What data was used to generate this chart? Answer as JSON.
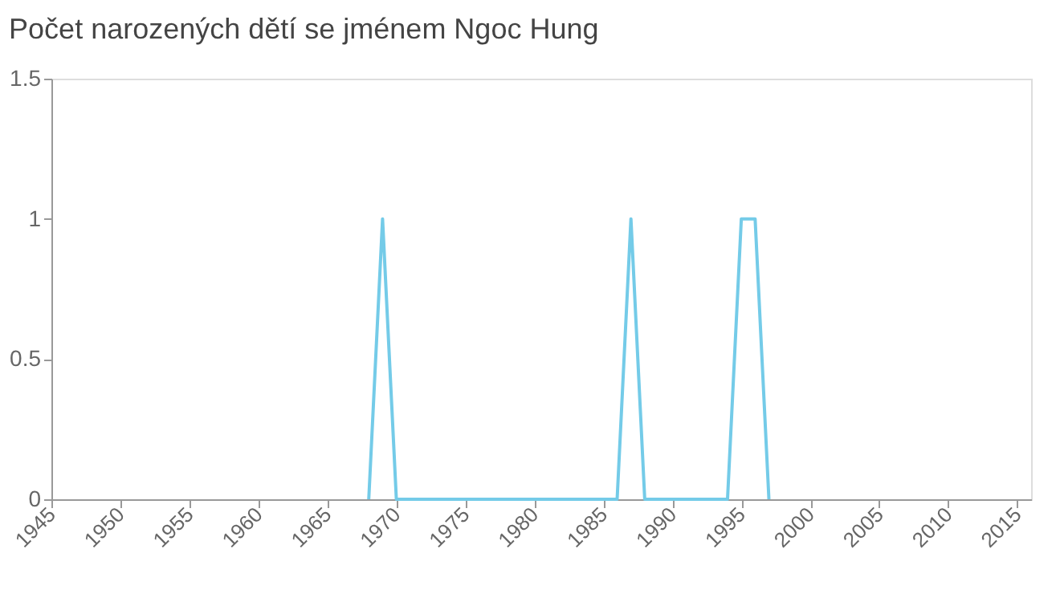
{
  "chart_data": {
    "type": "line",
    "title": "Počet narozených dětí se jménem Ngoc Hung",
    "x": [
      1968,
      1969,
      1970,
      1986,
      1987,
      1988,
      1994,
      1995,
      1996,
      1997
    ],
    "series": [
      {
        "color": "#74cbe8",
        "values": [
          0,
          1,
          0,
          0,
          1,
          0,
          0,
          1,
          1,
          0
        ]
      }
    ],
    "xlim": [
      1945,
      2016
    ],
    "xticks": [
      1945,
      1950,
      1955,
      1960,
      1965,
      1970,
      1975,
      1980,
      1985,
      1990,
      1995,
      2000,
      2005,
      2010,
      2015
    ],
    "ylim": [
      0,
      1.5
    ],
    "yticks": [
      0,
      0.5,
      1,
      1.5
    ],
    "grid": false,
    "marker": "none",
    "line_style": "solid"
  }
}
